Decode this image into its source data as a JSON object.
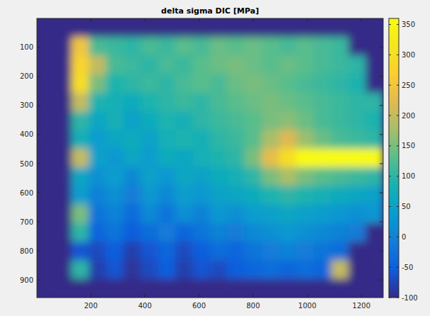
{
  "chart_data": {
    "type": "heatmap",
    "title": "delta sigma DIC [MPa]",
    "x": [
      32,
      96,
      160,
      224,
      288,
      352,
      416,
      480,
      544,
      608,
      672,
      736,
      800,
      864,
      928,
      992,
      1056,
      1120,
      1184,
      1248
    ],
    "y": [
      32,
      96,
      160,
      224,
      288,
      352,
      416,
      480,
      544,
      608,
      672,
      736,
      800,
      864,
      928
    ],
    "values": [
      [
        -100,
        -100,
        -100,
        -100,
        -100,
        -100,
        -100,
        -100,
        -100,
        -100,
        -100,
        -100,
        -100,
        -100,
        -100,
        -100,
        -100,
        -100,
        -100,
        -100
      ],
      [
        -100,
        -100,
        250,
        120,
        110,
        100,
        120,
        110,
        130,
        120,
        140,
        130,
        140,
        130,
        120,
        130,
        120,
        110,
        -100,
        -100
      ],
      [
        -100,
        -100,
        280,
        200,
        120,
        110,
        100,
        120,
        110,
        130,
        140,
        150,
        140,
        130,
        140,
        130,
        120,
        110,
        100,
        -100
      ],
      [
        -100,
        -100,
        300,
        150,
        90,
        100,
        110,
        100,
        120,
        130,
        120,
        140,
        150,
        140,
        130,
        120,
        110,
        100,
        90,
        -100
      ],
      [
        -100,
        -100,
        200,
        90,
        80,
        70,
        90,
        100,
        110,
        100,
        120,
        130,
        140,
        150,
        140,
        130,
        120,
        110,
        100,
        100
      ],
      [
        -100,
        -100,
        100,
        60,
        80,
        50,
        70,
        90,
        80,
        100,
        110,
        120,
        130,
        150,
        160,
        140,
        120,
        110,
        100,
        90
      ],
      [
        -100,
        -100,
        80,
        40,
        60,
        70,
        50,
        80,
        90,
        80,
        100,
        110,
        130,
        180,
        220,
        170,
        140,
        120,
        110,
        100
      ],
      [
        -100,
        -100,
        200,
        50,
        30,
        60,
        40,
        70,
        60,
        80,
        90,
        100,
        150,
        230,
        300,
        360,
        360,
        360,
        360,
        360
      ],
      [
        -100,
        -100,
        60,
        20,
        40,
        10,
        50,
        30,
        60,
        50,
        70,
        80,
        100,
        150,
        180,
        150,
        130,
        120,
        110,
        100
      ],
      [
        -100,
        -100,
        40,
        0,
        20,
        -10,
        30,
        10,
        40,
        30,
        50,
        60,
        70,
        90,
        100,
        90,
        80,
        70,
        60,
        50
      ],
      [
        -100,
        -100,
        150,
        -20,
        0,
        -30,
        10,
        -20,
        20,
        0,
        30,
        20,
        40,
        50,
        60,
        50,
        40,
        30,
        20,
        30
      ],
      [
        -100,
        -100,
        100,
        -40,
        -20,
        -50,
        -30,
        -10,
        -40,
        -20,
        0,
        -10,
        10,
        20,
        30,
        20,
        10,
        0,
        -10,
        -100
      ],
      [
        -100,
        -100,
        -60,
        -70,
        -50,
        -80,
        -60,
        -40,
        -70,
        -50,
        -30,
        -40,
        -20,
        -10,
        0,
        -10,
        -20,
        -30,
        -100,
        -100
      ],
      [
        -100,
        -100,
        100,
        -80,
        -60,
        -90,
        -70,
        -50,
        -80,
        -60,
        -70,
        -50,
        -40,
        -30,
        -40,
        -30,
        -40,
        200,
        -100,
        -100
      ],
      [
        -100,
        -100,
        -100,
        -100,
        -100,
        -100,
        -100,
        -100,
        -100,
        -100,
        -100,
        -100,
        -100,
        -100,
        -100,
        -100,
        -100,
        -100,
        -100,
        -100
      ]
    ],
    "xlim": [
      0.5,
      1280.5
    ],
    "xticks": [
      200,
      400,
      600,
      800,
      1000,
      1200
    ],
    "ylim": [
      960.5,
      0.5
    ],
    "yticks": [
      100,
      200,
      300,
      400,
      500,
      600,
      700,
      800,
      900
    ],
    "colorbar": {
      "range": [
        -100,
        360
      ],
      "ticks": [
        -100,
        -50,
        0,
        50,
        100,
        150,
        200,
        250,
        300,
        350
      ]
    }
  }
}
